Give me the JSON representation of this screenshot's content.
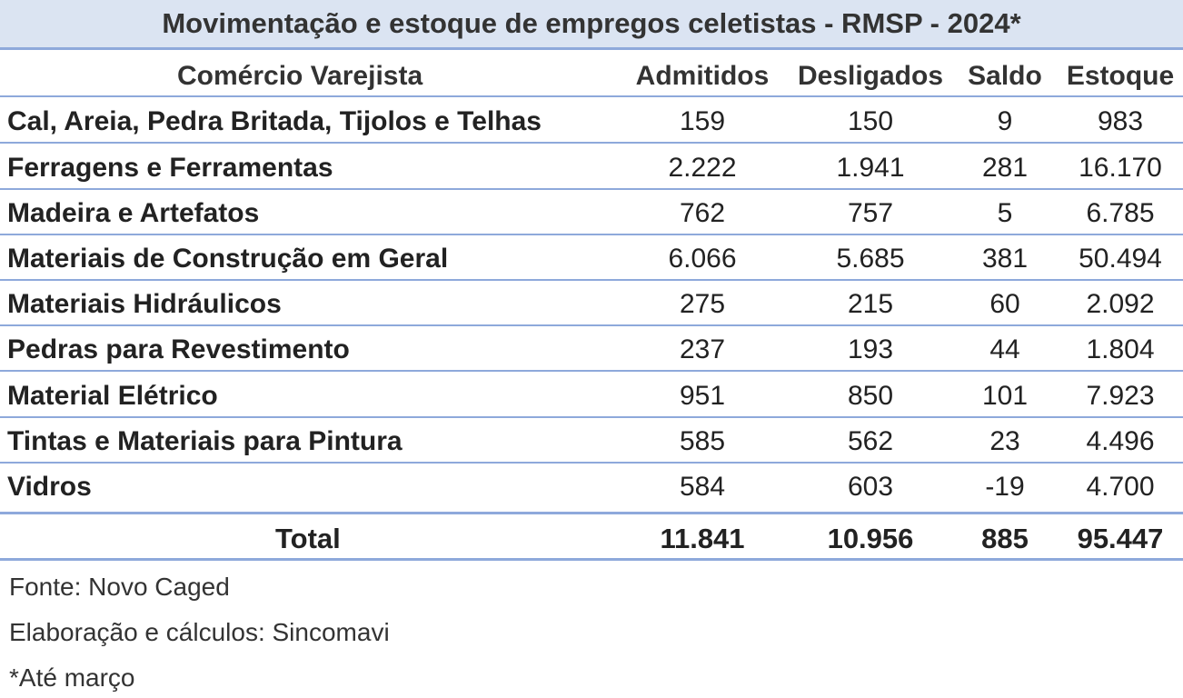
{
  "title": "Movimentação e estoque de empregos celetistas - RMSP - 2024*",
  "headers": {
    "category": "Comércio Varejista",
    "admitidos": "Admitidos",
    "desligados": "Desligados",
    "saldo": "Saldo",
    "estoque": "Estoque"
  },
  "rows": [
    {
      "name": "Cal, Areia, Pedra Britada, Tijolos e Telhas",
      "admitidos": "159",
      "desligados": "150",
      "saldo": "9",
      "estoque": "983"
    },
    {
      "name": "Ferragens e Ferramentas",
      "admitidos": "2.222",
      "desligados": "1.941",
      "saldo": "281",
      "estoque": "16.170"
    },
    {
      "name": "Madeira e Artefatos",
      "admitidos": "762",
      "desligados": "757",
      "saldo": "5",
      "estoque": "6.785"
    },
    {
      "name": "Materiais de Construção em Geral",
      "admitidos": "6.066",
      "desligados": "5.685",
      "saldo": "381",
      "estoque": "50.494"
    },
    {
      "name": "Materiais Hidráulicos",
      "admitidos": "275",
      "desligados": "215",
      "saldo": "60",
      "estoque": "2.092"
    },
    {
      "name": "Pedras para Revestimento",
      "admitidos": "237",
      "desligados": "193",
      "saldo": "44",
      "estoque": "1.804"
    },
    {
      "name": "Material Elétrico",
      "admitidos": "951",
      "desligados": "850",
      "saldo": "101",
      "estoque": "7.923"
    },
    {
      "name": "Tintas e Materiais para Pintura",
      "admitidos": "585",
      "desligados": "562",
      "saldo": "23",
      "estoque": "4.496"
    },
    {
      "name": "Vidros",
      "admitidos": "584",
      "desligados": "603",
      "saldo": "-19",
      "estoque": "4.700"
    }
  ],
  "total": {
    "label": "Total",
    "admitidos": "11.841",
    "desligados": "10.956",
    "saldo": "885",
    "estoque": "95.447"
  },
  "notes": {
    "source": "Fonte: Novo Caged",
    "elaboration": "Elaboração e cálculos: Sincomavi",
    "footnote": "*Até março"
  },
  "colors": {
    "title_bg": "#dbe4f2",
    "border": "#8ea9db"
  }
}
